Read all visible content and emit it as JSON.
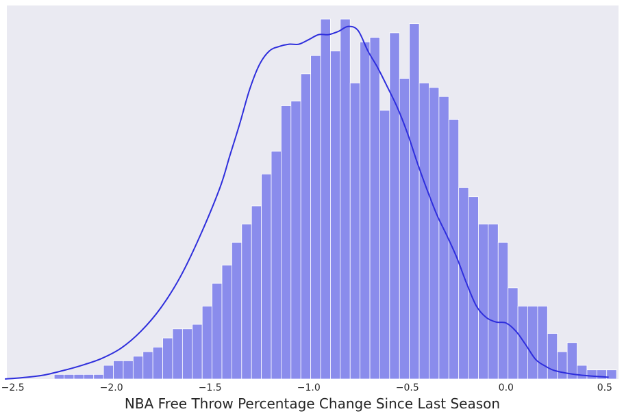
{
  "chart_data": {
    "type": "histogram",
    "xlabel": "NBA Free Throw Percentage Change Since Last Season",
    "ylabel": "",
    "xlim": [
      -2.53,
      0.57
    ],
    "ylim": [
      0,
      82
    ],
    "grid": false,
    "bar_color": "#8a8cec",
    "bar_edge_color": "#ffffff",
    "kde_color": "#2e2edc",
    "background_color": "#eaeaf2",
    "x_ticks": [
      {
        "value": -2.5,
        "label": "−2.5"
      },
      {
        "value": -2.0,
        "label": "−2.0"
      },
      {
        "value": -1.5,
        "label": "−1.5"
      },
      {
        "value": -1.0,
        "label": "−1.0"
      },
      {
        "value": -0.5,
        "label": "−0.5"
      },
      {
        "value": 0.0,
        "label": "0.0"
      },
      {
        "value": 0.5,
        "label": "0.5"
      }
    ],
    "bins": {
      "start": -2.29,
      "width": 0.05,
      "counts": [
        1,
        1,
        1,
        1,
        1,
        3,
        4,
        4,
        5,
        6,
        7,
        9,
        11,
        11,
        12,
        16,
        21,
        25,
        30,
        34,
        38,
        45,
        50,
        60,
        61,
        67,
        71,
        79,
        72,
        79,
        65,
        74,
        75,
        59,
        76,
        66,
        78,
        65,
        64,
        62,
        57,
        42,
        40,
        34,
        34,
        30,
        20,
        16,
        16,
        16,
        10,
        6,
        8,
        3,
        2,
        2,
        2
      ]
    },
    "kde": {
      "x": [
        -2.54,
        -2.45,
        -2.35,
        -2.25,
        -2.15,
        -2.05,
        -1.95,
        -1.85,
        -1.75,
        -1.65,
        -1.55,
        -1.45,
        -1.4,
        -1.35,
        -1.3,
        -1.25,
        -1.2,
        -1.15,
        -1.1,
        -1.05,
        -1.0,
        -0.95,
        -0.9,
        -0.85,
        -0.8,
        -0.75,
        -0.7,
        -0.65,
        -0.6,
        -0.55,
        -0.5,
        -0.45,
        -0.4,
        -0.35,
        -0.3,
        -0.25,
        -0.2,
        -0.15,
        -0.1,
        -0.05,
        0.0,
        0.05,
        0.1,
        0.15,
        0.2,
        0.25,
        0.35,
        0.45,
        0.52
      ],
      "y": [
        0.0,
        0.3,
        0.8,
        1.8,
        3.0,
        4.5,
        6.8,
        10.5,
        15.6,
        22.5,
        31.5,
        42.0,
        49.0,
        56.0,
        63.5,
        69.0,
        72.0,
        73.0,
        73.5,
        73.5,
        74.5,
        75.6,
        75.6,
        76.3,
        77.4,
        76.5,
        72.0,
        68.3,
        64.0,
        59.5,
        54.0,
        47.5,
        41.5,
        36.0,
        31.5,
        26.7,
        21.0,
        16.0,
        13.5,
        12.5,
        12.3,
        10.5,
        7.5,
        4.3,
        2.8,
        1.8,
        1.0,
        0.6,
        0.4
      ]
    }
  }
}
